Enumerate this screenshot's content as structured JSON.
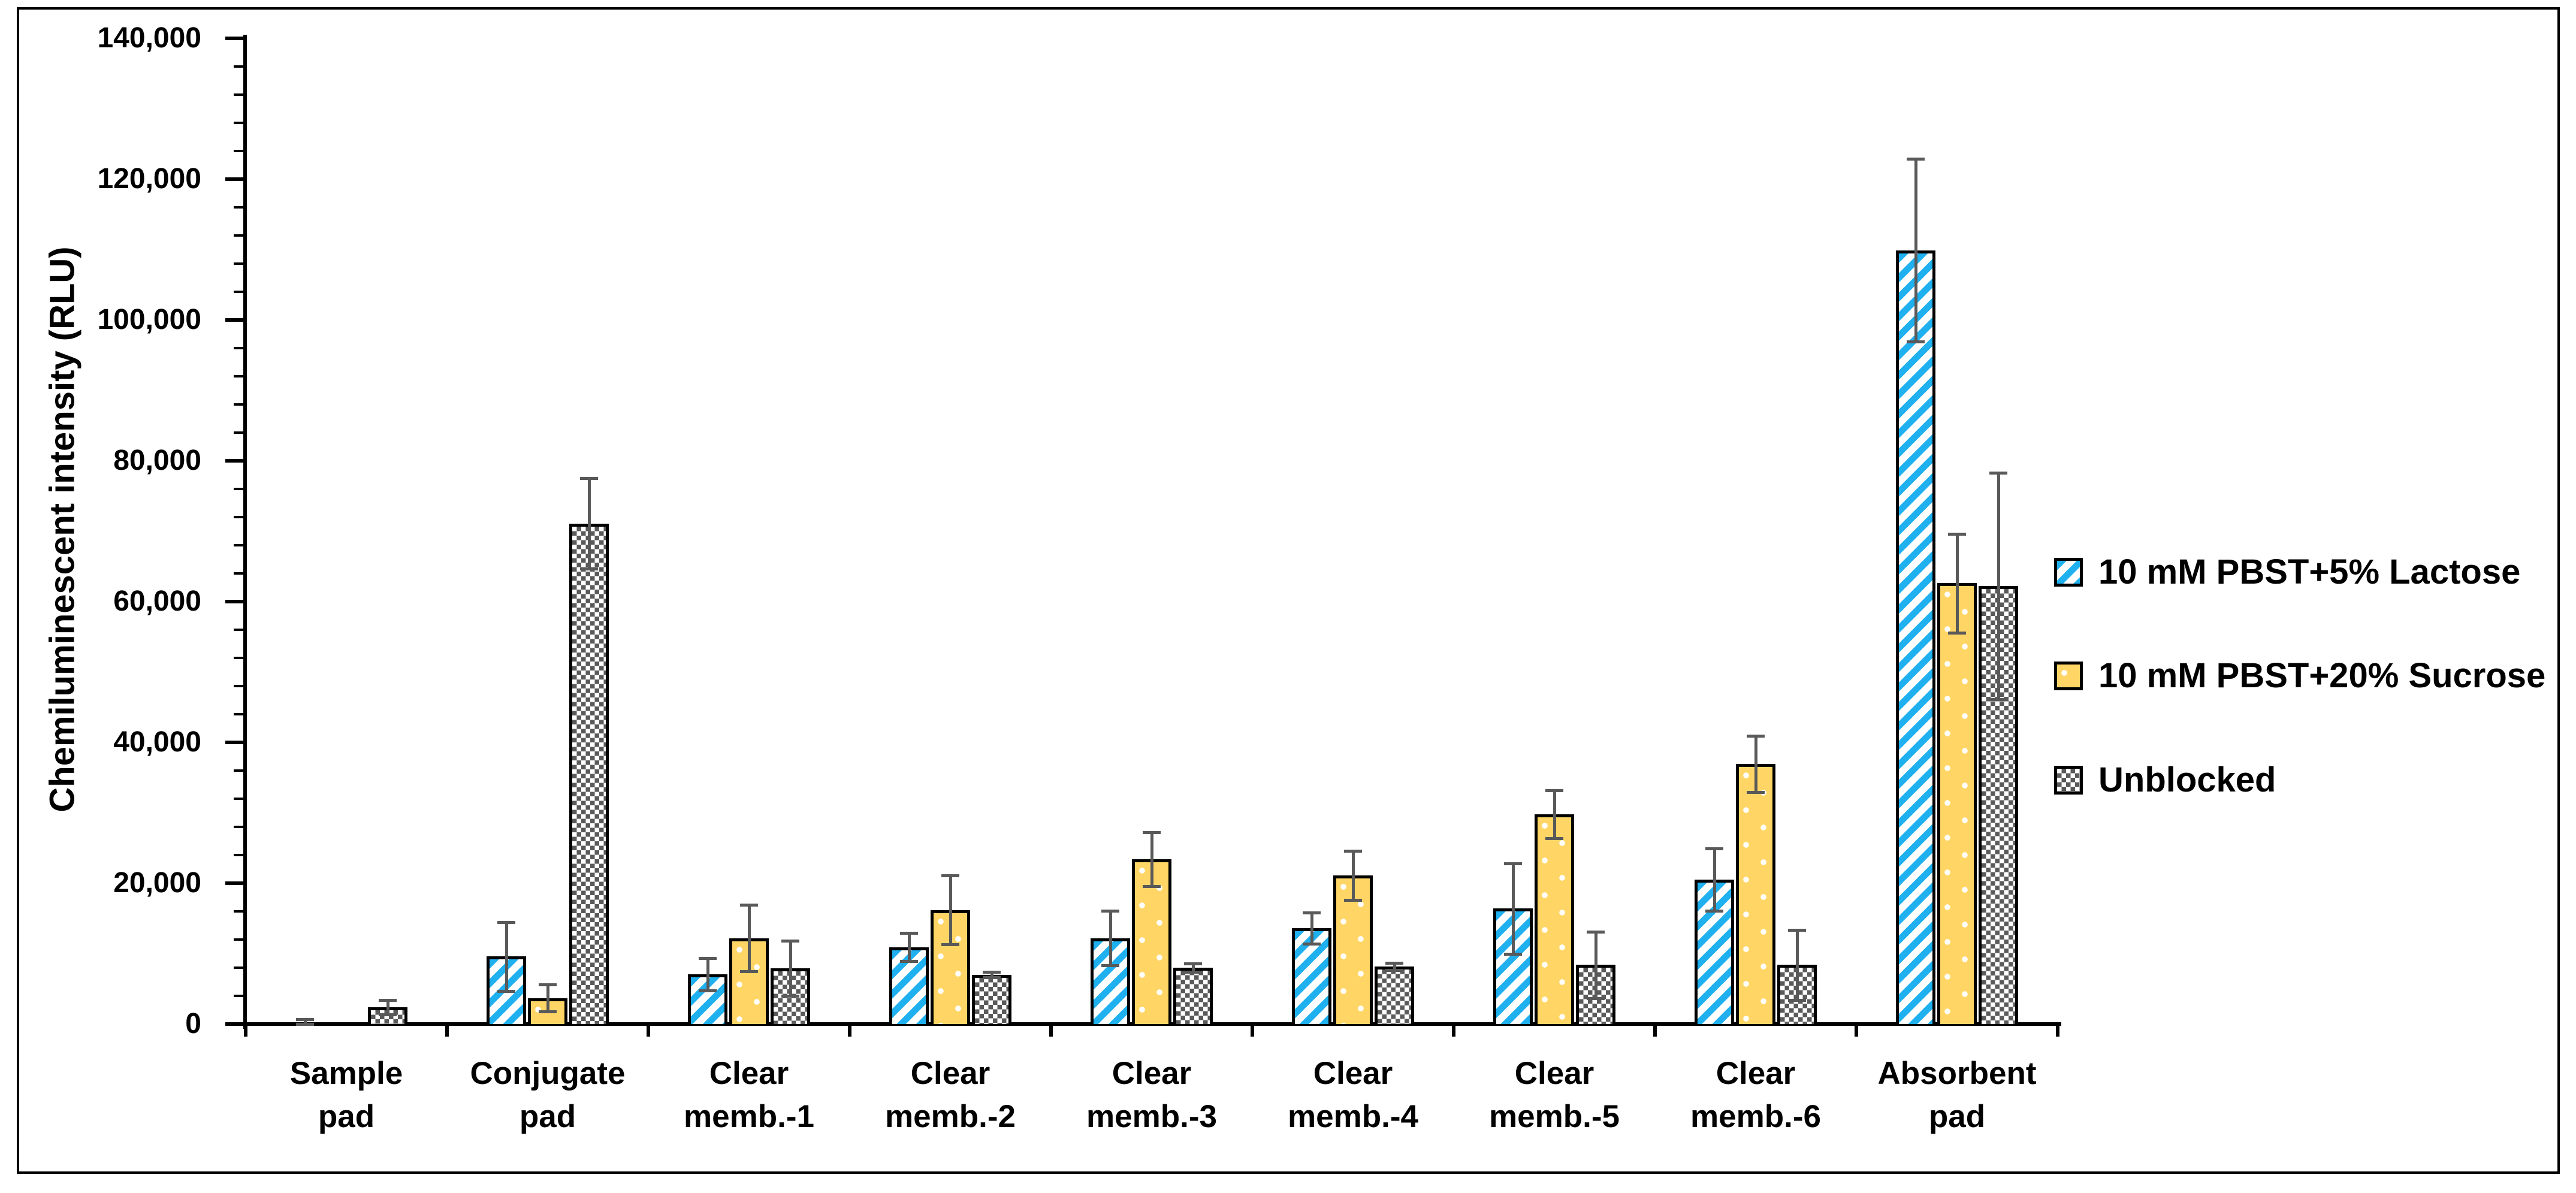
{
  "figure": {
    "background": "#ffffff",
    "border_color": "#000000"
  },
  "y_axis": {
    "title": "Chemiluminescent intensity (RLU)",
    "min": 0,
    "max": 140000,
    "major_unit": 20000,
    "minor_unit": 4000,
    "tick_labels": [
      "0",
      "20,000",
      "40,000",
      "60,000",
      "80,000",
      "100,000",
      "120,000",
      "140,000"
    ]
  },
  "x_axis": {
    "categories": [
      "Sample pad",
      "Conjugate pad",
      "Clear memb.-1",
      "Clear memb.-2",
      "Clear memb.-3",
      "Clear memb.-4",
      "Clear memb.-5",
      "Clear memb.-6",
      "Absorbent pad"
    ],
    "category_lines": [
      [
        "Sample",
        "pad"
      ],
      [
        "Conjugate",
        "pad"
      ],
      [
        "Clear",
        "memb.-1"
      ],
      [
        "Clear",
        "memb.-2"
      ],
      [
        "Clear",
        "memb.-3"
      ],
      [
        "Clear",
        "memb.-4"
      ],
      [
        "Clear",
        "memb.-5"
      ],
      [
        "Clear",
        "memb.-6"
      ],
      [
        "Absorbent",
        "pad"
      ]
    ]
  },
  "legend": {
    "position": "right",
    "items": [
      {
        "label": "10 mM PBST+5% Lactose",
        "pattern": "diagonal-stripes",
        "color": "#1fb0f0"
      },
      {
        "label": "10 mM PBST+20% Sucrose",
        "pattern": "dots",
        "color": "#ffd666"
      },
      {
        "label": "Unblocked",
        "pattern": "checker",
        "color": "#5a5a5a"
      }
    ]
  },
  "error_bar_color": "#595959",
  "chart_data": {
    "type": "bar",
    "title": "",
    "xlabel": "",
    "ylabel": "Chemiluminescent intensity (RLU)",
    "ylim": [
      0,
      140000
    ],
    "grid": false,
    "legend_position": "right",
    "categories": [
      "Sample pad",
      "Conjugate pad",
      "Clear memb.-1",
      "Clear memb.-2",
      "Clear memb.-3",
      "Clear memb.-4",
      "Clear memb.-5",
      "Clear memb.-6",
      "Absorbent pad"
    ],
    "series": [
      {
        "name": "10 mM PBST+5% Lactose",
        "pattern": "diagonal-stripes",
        "color": "#1fb0f0",
        "values": [
          250,
          9600,
          7100,
          10900,
          12200,
          13600,
          16400,
          20500,
          109900
        ],
        "errors": [
          450,
          4900,
          2300,
          2000,
          3900,
          2200,
          6400,
          4400,
          13000
        ]
      },
      {
        "name": "10 mM PBST+20% Sucrose",
        "pattern": "dots",
        "color": "#ffd666",
        "values": [
          150,
          3700,
          12200,
          16200,
          23400,
          21100,
          29800,
          36900,
          62600
        ],
        "errors": [
          0,
          1900,
          4700,
          4900,
          3800,
          3500,
          3400,
          4000,
          7000
        ]
      },
      {
        "name": "Unblocked",
        "pattern": "checker",
        "color": "#5a5a5a",
        "values": [
          2400,
          71100,
          7900,
          7000,
          8000,
          8200,
          8400,
          8400,
          62200
        ],
        "errors": [
          1000,
          6400,
          3900,
          400,
          600,
          500,
          4700,
          5000,
          16100
        ]
      }
    ]
  }
}
